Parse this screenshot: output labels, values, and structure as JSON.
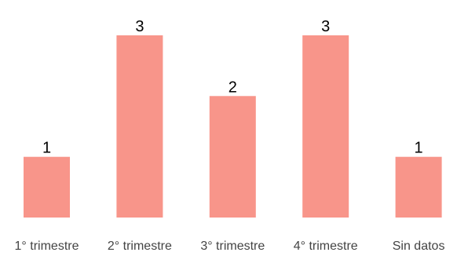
{
  "chart_data": {
    "type": "bar",
    "categories": [
      "1° trimestre",
      "2° trimestre",
      "3° trimestre",
      "4° trimestre",
      "Sin datos"
    ],
    "values": [
      1,
      3,
      2,
      3,
      1
    ],
    "data_labels": [
      "1",
      "3",
      "2",
      "3",
      "1"
    ],
    "title": "",
    "xlabel": "",
    "ylabel": "",
    "ylim": [
      0,
      3
    ],
    "grid": false,
    "legend": "none",
    "bar_color": "#f8958a"
  }
}
